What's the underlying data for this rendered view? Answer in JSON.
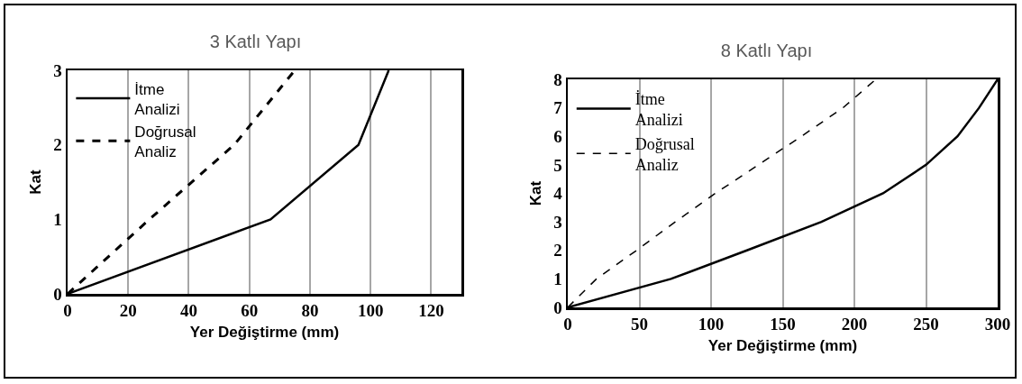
{
  "chart_data": [
    {
      "type": "line",
      "title": "3 Katlı Yapı",
      "xlabel": "Yer Değiştirme (mm)",
      "ylabel": "Kat",
      "xlim": [
        0,
        130
      ],
      "xticks": [
        0,
        20,
        40,
        60,
        80,
        100,
        120
      ],
      "ylim": [
        0,
        3
      ],
      "yticks": [
        0,
        1,
        2,
        3
      ],
      "grid": "x",
      "legend": "top left",
      "marker": "none",
      "series": [
        {
          "name": "İtme Analizi",
          "color": "#000000",
          "line_style": "solid",
          "x": [
            0,
            67,
            96,
            106
          ],
          "values": [
            0,
            1,
            2,
            3
          ]
        },
        {
          "name": "Doğrusal Analiz",
          "color": "#000000",
          "line_style": "dashed",
          "x": [
            0,
            27,
            55,
            75
          ],
          "values": [
            0,
            1,
            2,
            3
          ]
        }
      ]
    },
    {
      "type": "line",
      "title": "8 Katlı Yapı",
      "xlabel": "Yer Değiştirme (mm)",
      "ylabel": "Kat",
      "xlim": [
        0,
        300
      ],
      "xticks": [
        0,
        50,
        100,
        150,
        200,
        250,
        300
      ],
      "ylim": [
        0,
        8
      ],
      "yticks": [
        0,
        1,
        2,
        3,
        4,
        5,
        6,
        7,
        8
      ],
      "grid": "x",
      "legend": "top left",
      "marker": "none",
      "series": [
        {
          "name": "İtme Analizi",
          "color": "#000000",
          "line_style": "solid",
          "x": [
            0,
            72,
            125,
            177,
            220,
            250,
            272,
            287,
            300
          ],
          "values": [
            0,
            1,
            2,
            3,
            4,
            5,
            6,
            7,
            8
          ]
        },
        {
          "name": "Doğrusal Analiz",
          "color": "#000000",
          "line_style": "dashed",
          "x": [
            0,
            20,
            48,
            75,
            103,
            133,
            163,
            192,
            215
          ],
          "values": [
            0,
            1,
            2,
            3,
            4,
            5,
            6,
            7,
            8
          ]
        }
      ]
    }
  ]
}
